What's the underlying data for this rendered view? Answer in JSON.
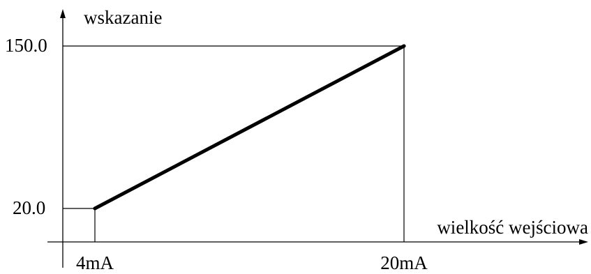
{
  "chart_data": {
    "type": "line",
    "title": "",
    "ylabel": "wskazanie",
    "xlabel": "wielkość wejściowa",
    "x_ticks": [
      {
        "value": 4,
        "label": "4mA"
      },
      {
        "value": 20,
        "label": "20mA"
      }
    ],
    "y_ticks": [
      {
        "value": 20,
        "label": "20.0"
      },
      {
        "value": 150,
        "label": "150.0"
      }
    ],
    "series": [
      {
        "points": [
          {
            "x": 4,
            "y": 20
          },
          {
            "x": 20,
            "y": 150
          }
        ]
      }
    ],
    "grid": false,
    "line_color": "#000000"
  }
}
